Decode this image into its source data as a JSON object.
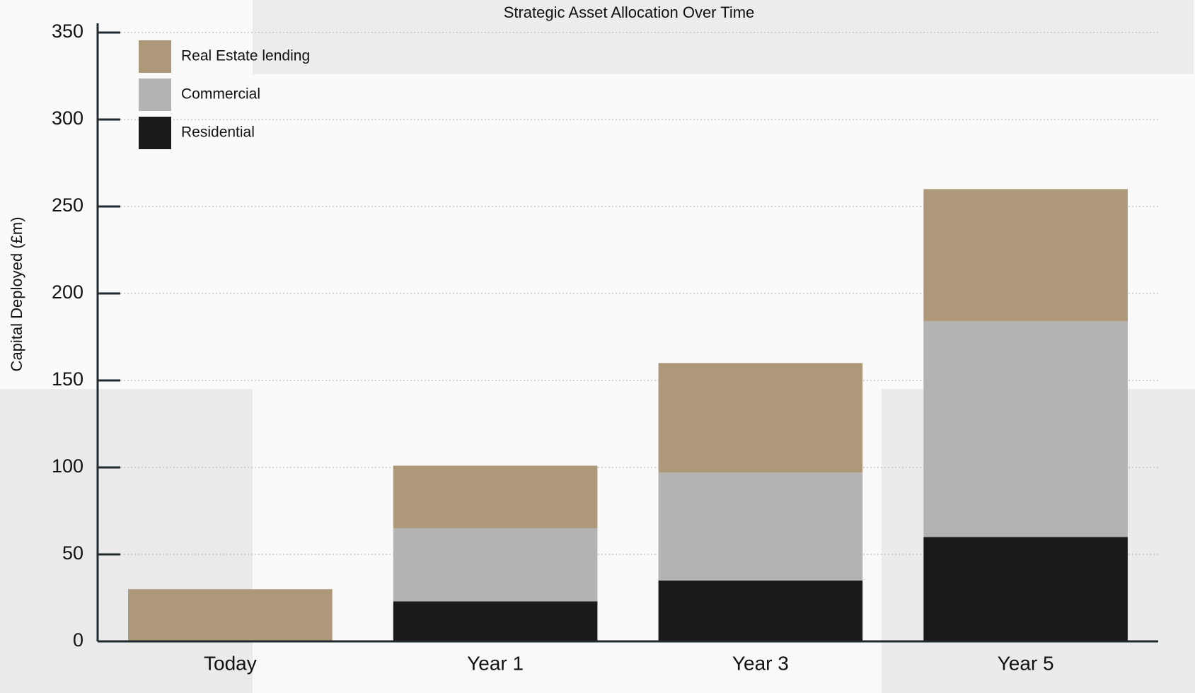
{
  "chart_data": {
    "type": "stacked_bar",
    "title": "Strategic Asset Allocation Over Time",
    "y_label": "Capital Deployed (£m)",
    "categories": [
      "Today",
      "Year 1",
      "Year 3",
      "Year 5"
    ],
    "series": [
      {
        "name": "Residential",
        "color": "#1a1a1a",
        "values": [
          0,
          23,
          35,
          60
        ]
      },
      {
        "name": "Commercial",
        "color": "#b3b3b3",
        "values": [
          0,
          42,
          62,
          124
        ]
      },
      {
        "name": "Real Estate lending",
        "color": "#ad987a",
        "values": [
          30,
          36,
          63,
          76
        ]
      }
    ],
    "ylim": [
      0,
      350
    ],
    "yticks": [
      0,
      50,
      100,
      150,
      200,
      250,
      300,
      350
    ],
    "grid": true,
    "legend": "upper left"
  }
}
